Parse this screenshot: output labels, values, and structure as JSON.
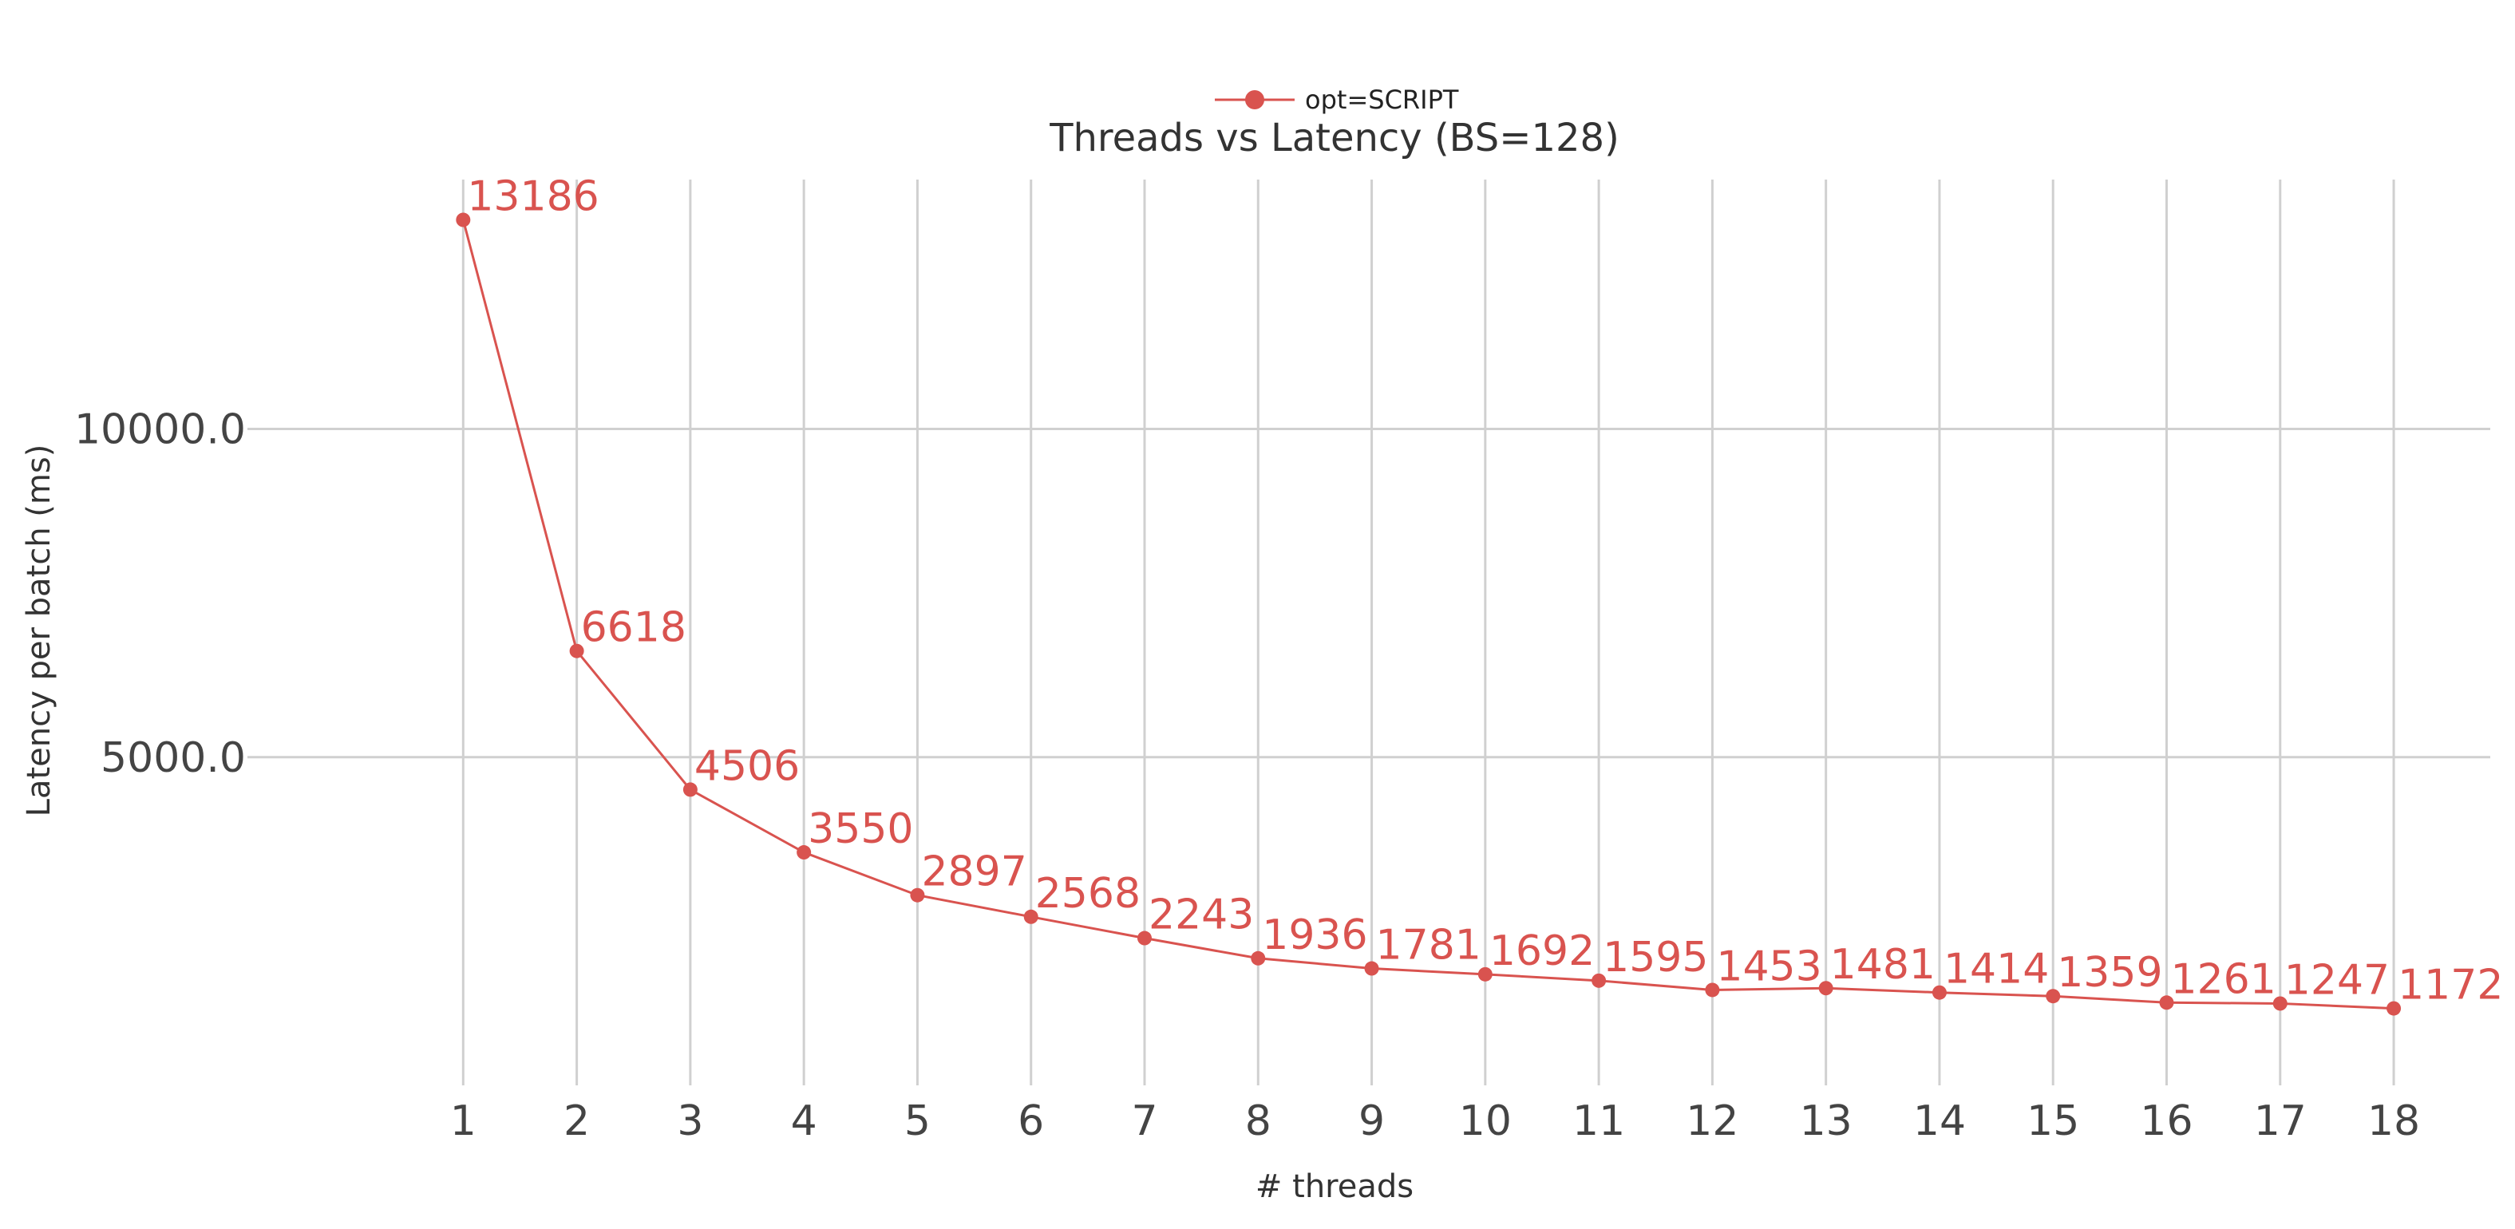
{
  "chart_data": {
    "type": "line",
    "title": "Threads vs Latency (BS=128)",
    "xlabel": "# threads",
    "ylabel": "Latency per batch (ms)",
    "x": [
      1,
      2,
      3,
      4,
      5,
      6,
      7,
      8,
      9,
      10,
      11,
      12,
      13,
      14,
      15,
      16,
      17,
      18
    ],
    "x_tick_labels": [
      "1",
      "2",
      "3",
      "4",
      "5",
      "6",
      "7",
      "8",
      "9",
      "10",
      "11",
      "12",
      "13",
      "14",
      "15",
      "16",
      "17",
      "18"
    ],
    "y_ticks": [
      5000,
      10000
    ],
    "y_tick_labels": [
      "5000.0",
      "10000.0"
    ],
    "ylim": [
      0,
      13800
    ],
    "xlim": [
      -0.9,
      18.85
    ],
    "grid": true,
    "legend_position": "top-center",
    "series": [
      {
        "name": "opt=SCRIPT",
        "color": "#d9534f",
        "values": [
          13186,
          6618,
          4506,
          3550,
          2897,
          2568,
          2243,
          1936,
          1781,
          1692,
          1595,
          1453,
          1481,
          1414,
          1359,
          1261,
          1247,
          1172
        ],
        "value_labels": [
          "13186",
          "6618",
          "4506",
          "3550",
          "2897",
          "2568",
          "2243",
          "1936",
          "1781",
          "1692",
          "1595",
          "1453",
          "1481",
          "1414",
          "1359",
          "1261",
          "1247",
          "1172"
        ]
      }
    ]
  }
}
